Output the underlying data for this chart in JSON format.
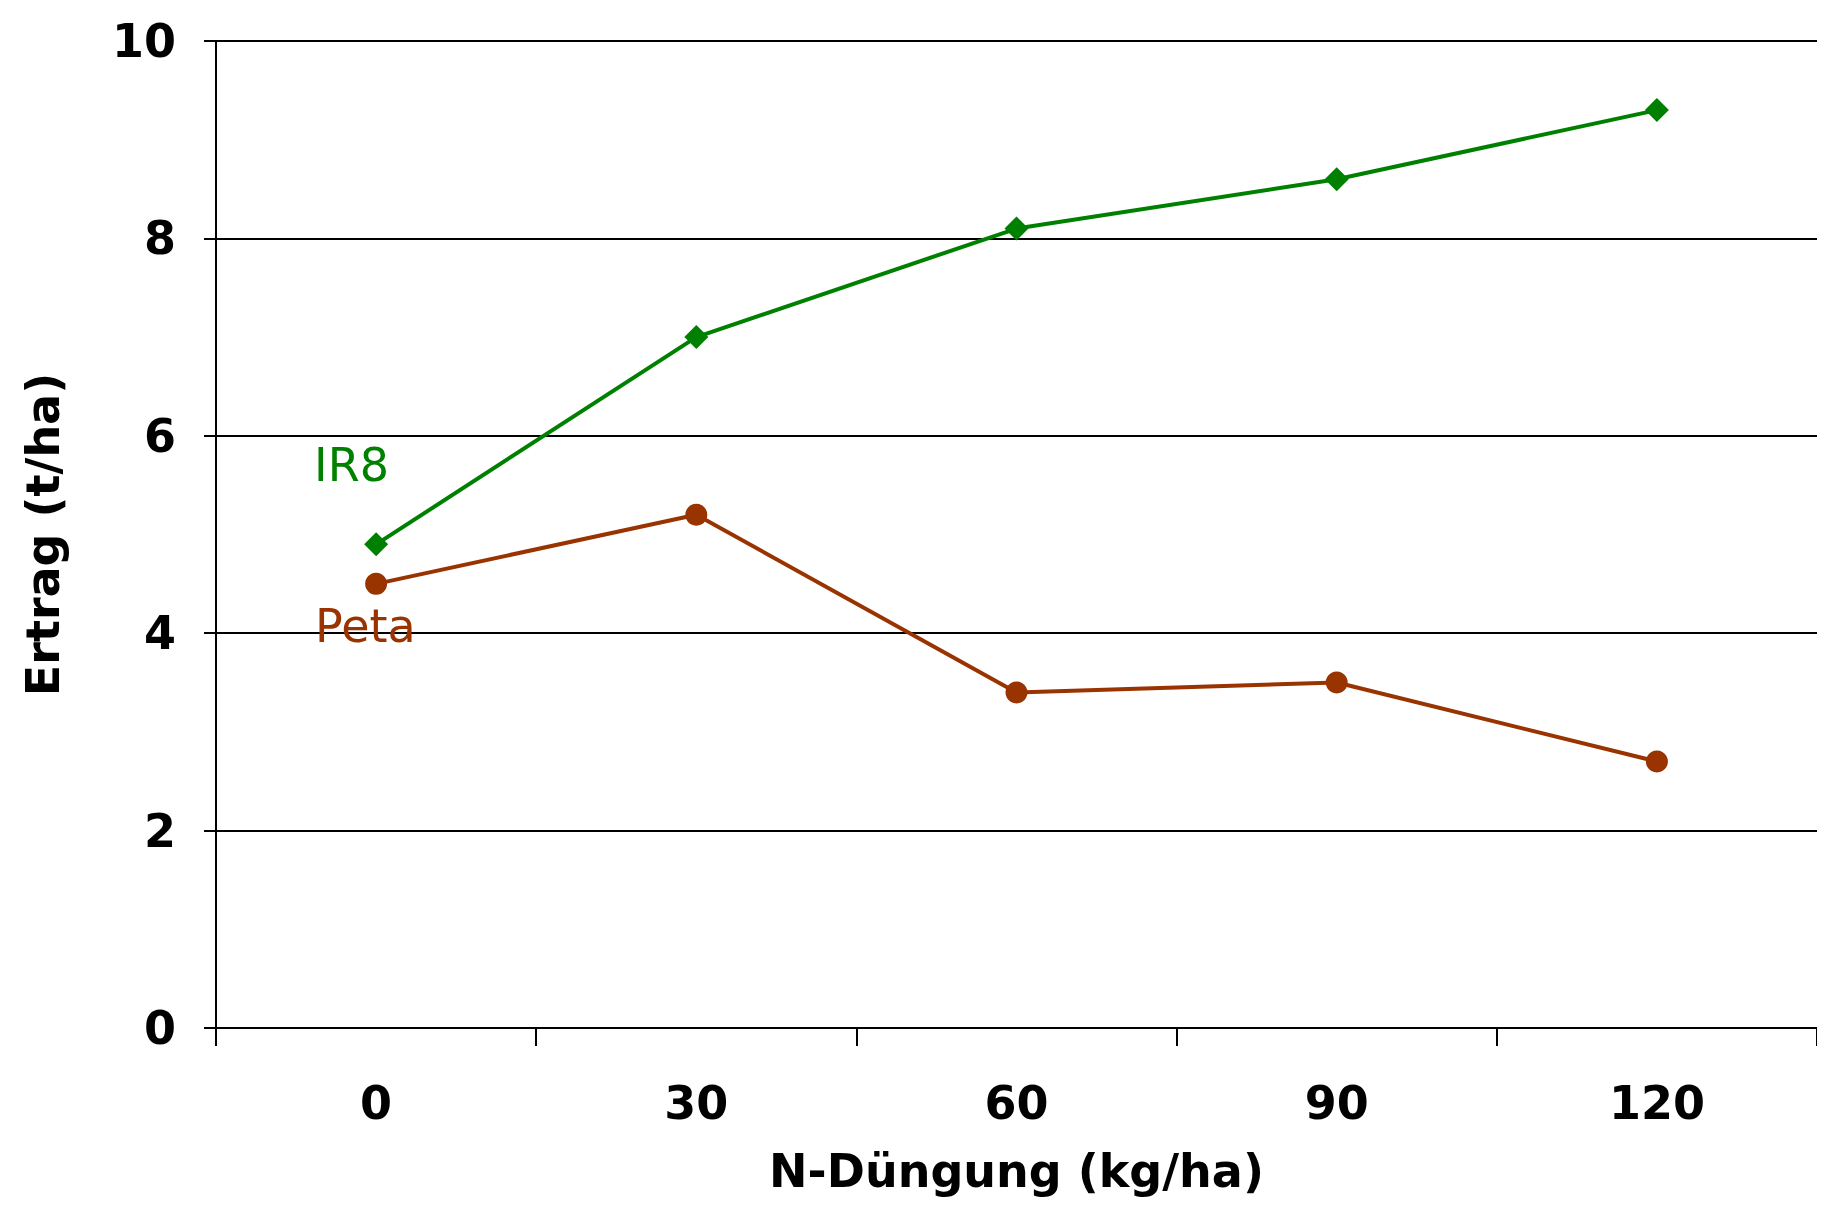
{
  "chart_data": {
    "type": "line",
    "xlabel": "N-Düngung (kg/ha)",
    "ylabel": "Ertrag (t/ha)",
    "categories": [
      "0",
      "30",
      "60",
      "90",
      "120"
    ],
    "series": [
      {
        "name": "IR8",
        "color": "#008000",
        "marker": "diamond",
        "values": [
          4.9,
          7.0,
          8.1,
          8.6,
          9.3
        ]
      },
      {
        "name": "Peta",
        "color": "#993300",
        "marker": "circle",
        "values": [
          4.5,
          5.2,
          3.4,
          3.5,
          2.7
        ]
      }
    ],
    "ylim": [
      0,
      10
    ],
    "yticks": [
      0,
      2,
      4,
      6,
      8,
      10
    ],
    "grid": "y",
    "legend": false,
    "line_style": "solid"
  }
}
